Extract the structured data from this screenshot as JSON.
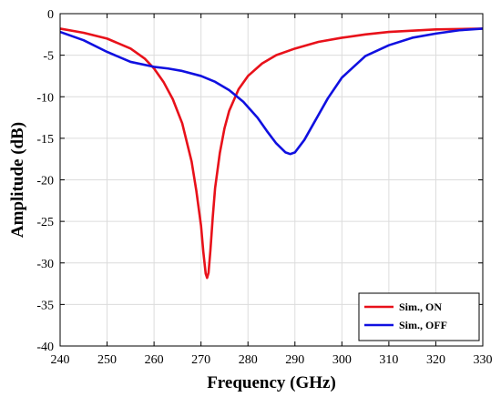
{
  "chart_data": {
    "type": "line",
    "xlabel": "Frequency (GHz)",
    "ylabel": "Amplitude (dB)",
    "xlim": [
      240,
      330
    ],
    "ylim": [
      -40,
      0
    ],
    "xticks": [
      240,
      250,
      260,
      270,
      280,
      290,
      300,
      310,
      320,
      330
    ],
    "yticks": [
      0,
      -5,
      -10,
      -15,
      -20,
      -25,
      -30,
      -35,
      -40
    ],
    "grid": true,
    "legend_position": "bottom-right",
    "series": [
      {
        "name": "Sim., ON",
        "color": "#e8111a",
        "x": [
          240,
          245,
          250,
          255,
          258,
          260,
          262,
          264,
          266,
          268,
          269,
          270,
          270.5,
          271,
          271.3,
          271.6,
          272,
          272.5,
          273,
          274,
          275,
          276,
          278,
          280,
          283,
          286,
          290,
          295,
          300,
          305,
          310,
          320,
          330
        ],
        "y": [
          -1.8,
          -2.3,
          -3.0,
          -4.2,
          -5.4,
          -6.6,
          -8.2,
          -10.3,
          -13.2,
          -17.8,
          -21.3,
          -25.5,
          -28.7,
          -31.3,
          -31.8,
          -31.2,
          -28.5,
          -24.5,
          -21.0,
          -16.8,
          -13.8,
          -11.7,
          -9.1,
          -7.5,
          -6.0,
          -5.0,
          -4.2,
          -3.4,
          -2.9,
          -2.5,
          -2.2,
          -1.9,
          -1.8
        ]
      },
      {
        "name": "Sim., OFF",
        "color": "#1010e0",
        "x": [
          240,
          245,
          250,
          255,
          260,
          263,
          266,
          270,
          273,
          276,
          279,
          282,
          284,
          286,
          288,
          289,
          290,
          292,
          294,
          297,
          300,
          305,
          310,
          315,
          320,
          325,
          330
        ],
        "y": [
          -2.2,
          -3.2,
          -4.6,
          -5.8,
          -6.4,
          -6.6,
          -6.9,
          -7.5,
          -8.2,
          -9.2,
          -10.6,
          -12.5,
          -14.1,
          -15.6,
          -16.7,
          -16.9,
          -16.7,
          -15.2,
          -13.2,
          -10.2,
          -7.7,
          -5.1,
          -3.8,
          -2.9,
          -2.4,
          -2.0,
          -1.8
        ]
      }
    ]
  }
}
